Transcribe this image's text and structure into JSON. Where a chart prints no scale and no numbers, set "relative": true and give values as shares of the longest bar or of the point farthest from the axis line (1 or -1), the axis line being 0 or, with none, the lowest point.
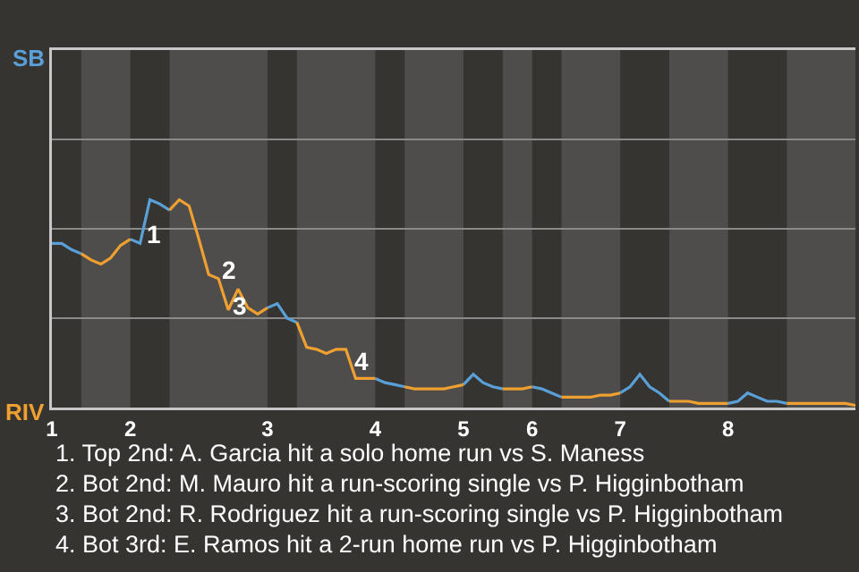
{
  "chart_data": {
    "type": "line",
    "relative": true,
    "categories": [
      "1",
      null,
      null,
      null,
      null,
      null,
      null,
      null,
      "2",
      null,
      null,
      null,
      null,
      null,
      null,
      null,
      null,
      null,
      null,
      null,
      null,
      null,
      "3",
      null,
      null,
      null,
      null,
      null,
      null,
      null,
      null,
      null,
      null,
      "4",
      null,
      null,
      null,
      null,
      null,
      null,
      null,
      null,
      "5",
      null,
      null,
      null,
      null,
      null,
      null,
      "6",
      null,
      null,
      null,
      null,
      null,
      null,
      null,
      null,
      "7",
      null,
      null,
      null,
      null,
      null,
      null,
      null,
      null,
      null,
      null,
      "8",
      null,
      null,
      null,
      null,
      null,
      null,
      null,
      null,
      null,
      null,
      null,
      null,
      null
    ],
    "series": [
      {
        "color": "#5aa0d8",
        "values": [
          0.79,
          0.79,
          0.76,
          0.74,
          null,
          null,
          null,
          null,
          0.81,
          0.79,
          1,
          0.98,
          0.95,
          null,
          null,
          null,
          null,
          null,
          null,
          null,
          null,
          null,
          0.48,
          0.5,
          0.43,
          0.41,
          null,
          null,
          null,
          null,
          null,
          null,
          null,
          0.14,
          0.12,
          0.11,
          0.1,
          null,
          null,
          null,
          null,
          null,
          0.11,
          0.16,
          0.12,
          0.1,
          0.09,
          null,
          null,
          0.1,
          0.09,
          0.07,
          0.05,
          null,
          null,
          null,
          null,
          null,
          0.07,
          0.1,
          0.16,
          0.1,
          0.07,
          0.03,
          null,
          null,
          null,
          null,
          null,
          0.02,
          0.03,
          0.07,
          0.05,
          0.03,
          0.03,
          0.02,
          null,
          null,
          null,
          null,
          null,
          null,
          null
        ]
      },
      {
        "color": "#f0a030",
        "values": [
          null,
          null,
          null,
          0.74,
          0.71,
          0.69,
          0.72,
          0.78,
          0.81,
          null,
          null,
          null,
          0.95,
          1,
          0.97,
          0.81,
          0.64,
          0.62,
          0.47,
          0.57,
          0.48,
          0.45,
          0.48,
          null,
          null,
          0.41,
          0.29,
          0.28,
          0.26,
          0.28,
          0.28,
          0.14,
          0.14,
          0.14,
          null,
          null,
          0.1,
          0.09,
          0.09,
          0.09,
          0.09,
          0.1,
          0.11,
          null,
          null,
          null,
          0.09,
          0.09,
          0.09,
          0.1,
          null,
          null,
          0.05,
          0.05,
          0.05,
          0.05,
          0.06,
          0.06,
          0.07,
          null,
          null,
          null,
          null,
          0.03,
          0.03,
          0.03,
          0.02,
          0.02,
          0.02,
          0.02,
          null,
          null,
          null,
          null,
          null,
          0.02,
          0.02,
          0.02,
          0.02,
          0.02,
          0.02,
          0.02,
          0.01
        ]
      }
    ],
    "ref_lines": [
      {
        "axis": "y",
        "value": 0.43,
        "color": "#8a8a8a"
      },
      {
        "axis": "y",
        "value": 0.86,
        "color": "#8a8a8a"
      },
      {
        "axis": "y",
        "value": 1.29,
        "color": "#8a8a8a"
      }
    ],
    "annotations": [
      "SB",
      "RIV",
      "1",
      "2",
      "3",
      "4",
      "1. Top 2nd: A. Garcia hit a solo home run vs S. Maness",
      "2. Bot 2nd: M. Mauro hit a run-scoring single vs P. Higginbotham",
      "3. Bot 2nd: R. Rodriguez hit a run-scoring single vs P. Higginbotham",
      "4. Bot 3rd: E. Ramos hit a 2-run home run vs P. Higginbotham"
    ]
  }
}
